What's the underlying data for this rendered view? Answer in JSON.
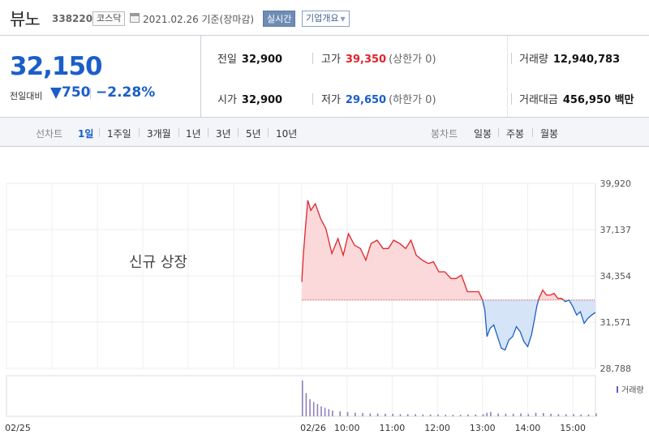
{
  "header": {
    "name": "뷰노",
    "code": "338220",
    "market": "코스닥",
    "date": "2021.02.26 기준(장마감)",
    "realtime_label": "실시간",
    "company_label": "기업개요"
  },
  "summary": {
    "price": "32,150",
    "change_label": "전일대비",
    "change": "750",
    "change_pct": "−2.28%",
    "prev_label": "전일",
    "prev": "32,900",
    "open_label": "시가",
    "open": "32,900",
    "high_label": "고가",
    "high": "39,350",
    "high_note": "(상한가 0)",
    "low_label": "저가",
    "low": "29,650",
    "low_note": "(하한가 0)",
    "volume_label": "거래량",
    "volume": "12,940,783",
    "amount_label": "거래대금",
    "amount": "456,950 백만"
  },
  "toolbar": {
    "line_chart": "선차트",
    "periods": [
      "1일",
      "1주일",
      "3개월",
      "1년",
      "3년",
      "5년",
      "10년"
    ],
    "active_period": "1일",
    "candle_chart": "봉차트",
    "candle_periods": [
      "일봉",
      "주봉",
      "월봉"
    ]
  },
  "colors": {
    "up": "#e0232b",
    "down": "#1b5ec9",
    "up_fill": "#fbd9da",
    "down_fill": "#d6e4f7",
    "volume": "#9081b8"
  },
  "chart_data": {
    "type": "line",
    "annotation": "신규 상장",
    "ylim": [
      28788,
      39920
    ],
    "y_ticks": [
      "39,920",
      "37,137",
      "34,354",
      "31,571",
      "28,788"
    ],
    "baseline": 32900,
    "x_labels": [
      "02/25",
      "02/26",
      "10:00",
      "11:00",
      "12:00",
      "13:00",
      "14:00",
      "15:00"
    ],
    "volume_label": "거래량",
    "series": [
      {
        "x": [
          "09:00",
          "09:02",
          "09:05",
          "09:08",
          "09:12",
          "09:18",
          "09:25",
          "09:32",
          "09:40",
          "09:48",
          "09:55",
          "10:02",
          "10:10",
          "10:18",
          "10:25",
          "10:32",
          "10:40",
          "10:48",
          "10:55",
          "11:02",
          "11:10",
          "11:18",
          "11:25",
          "11:32",
          "11:40",
          "11:48",
          "11:55",
          "12:02",
          "12:10",
          "12:18",
          "12:25",
          "12:32",
          "12:40",
          "12:48",
          "12:55",
          "13:00",
          "13:03",
          "13:06",
          "13:10",
          "13:15",
          "13:20",
          "13:25",
          "13:30",
          "13:35",
          "13:40",
          "13:45",
          "13:50",
          "13:55",
          "14:00",
          "14:05",
          "14:08",
          "14:12",
          "14:15",
          "14:18",
          "14:20",
          "14:25",
          "14:30",
          "14:35",
          "14:40",
          "14:45",
          "14:50",
          "14:55",
          "15:00",
          "15:05",
          "15:10",
          "15:15",
          "15:20",
          "15:25",
          "15:30"
        ],
        "values": [
          34000,
          35600,
          37300,
          38900,
          38300,
          38700,
          37800,
          37200,
          35700,
          36600,
          35600,
          36900,
          36200,
          36000,
          35300,
          36300,
          36500,
          36000,
          36000,
          36500,
          36300,
          36000,
          36500,
          35600,
          35300,
          35100,
          35200,
          34600,
          34600,
          34200,
          34200,
          34400,
          33400,
          33400,
          33400,
          32900,
          32300,
          30700,
          31200,
          31400,
          30700,
          30000,
          29900,
          30500,
          30700,
          31300,
          31000,
          30400,
          30100,
          30800,
          31500,
          32500,
          33000,
          33300,
          33500,
          33200,
          33200,
          33300,
          33000,
          33000,
          32800,
          32900,
          32500,
          32000,
          32200,
          31500,
          31800,
          32000,
          32150
        ]
      }
    ],
    "volume": {
      "x": [
        "09:00",
        "09:05",
        "09:10",
        "09:15",
        "09:20",
        "09:25",
        "09:30",
        "09:35",
        "09:40",
        "09:50",
        "10:00",
        "10:10",
        "10:20",
        "10:30",
        "10:40",
        "10:50",
        "11:00",
        "11:10",
        "11:20",
        "11:30",
        "11:40",
        "11:50",
        "12:00",
        "12:10",
        "12:20",
        "12:30",
        "12:40",
        "12:50",
        "13:00",
        "13:05",
        "13:10",
        "13:20",
        "13:30",
        "13:40",
        "13:50",
        "14:00",
        "14:10",
        "14:20",
        "14:30",
        "14:40",
        "14:50",
        "15:00",
        "15:10",
        "15:20",
        "15:30"
      ],
      "values": [
        100,
        65,
        48,
        40,
        34,
        28,
        24,
        20,
        16,
        14,
        12,
        10,
        9,
        8,
        8,
        7,
        7,
        6,
        6,
        6,
        5,
        5,
        5,
        4,
        4,
        4,
        5,
        5,
        6,
        10,
        12,
        8,
        7,
        7,
        8,
        6,
        10,
        9,
        7,
        6,
        6,
        6,
        5,
        5,
        8
      ]
    }
  }
}
